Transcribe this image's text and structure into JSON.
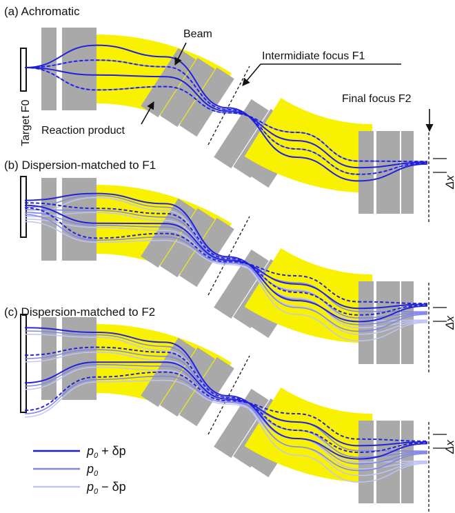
{
  "panels": [
    {
      "title": "(a) Achromatic"
    },
    {
      "title": "(b) Dispersion-matched to F1"
    },
    {
      "title": "(c) Dispersion-matched to F2"
    }
  ],
  "annotations": {
    "beam": "Beam",
    "intermediate_focus": "Intermidiate focus F1",
    "final_focus": "Final focus F2",
    "reaction_product": "Reaction product",
    "target": "Target F0",
    "delta_x": "Δx"
  },
  "legend": [
    {
      "momentum": "p",
      "subscript": "0",
      "suffix": " + δp",
      "color": "#1a1adc"
    },
    {
      "momentum": "p",
      "subscript": "0",
      "suffix": "",
      "color": "#7f84e8"
    },
    {
      "momentum": "p",
      "subscript": "0",
      "suffix": " − δp",
      "color": "#c0c4f4"
    }
  ],
  "colors": {
    "magnet_gray": "#a9a9a9",
    "dipole_yellow": "#f8f200",
    "beam_dark": "#1a1adc",
    "beam_mid": "#7f84e8",
    "beam_light": "#c0c4f4",
    "focus_line": "#222222"
  }
}
